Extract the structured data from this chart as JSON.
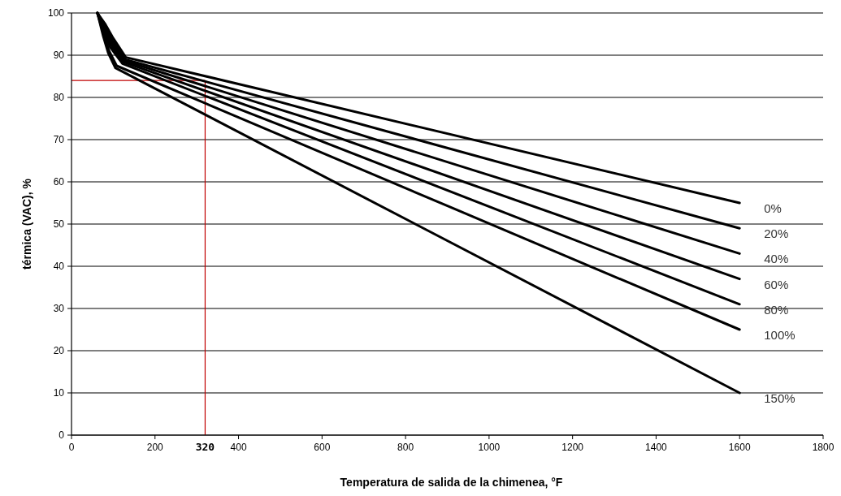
{
  "chart_data": {
    "type": "line",
    "xlabel": "Temperatura de salida de la chimenea, °F",
    "ylabel": "térmica (VAC), %",
    "xlim": [
      0,
      1800
    ],
    "xticks": [
      0,
      200,
      400,
      600,
      800,
      1000,
      1200,
      1400,
      1600,
      1800
    ],
    "ylim": [
      0,
      100
    ],
    "yticks": [
      0,
      10,
      20,
      30,
      40,
      50,
      60,
      70,
      80,
      90,
      100
    ],
    "grid": "y",
    "marker": "none",
    "line_style": "solid",
    "series": [
      {
        "name": "0%",
        "color": "#000000",
        "x": [
          62,
          80,
          100,
          130,
          1600
        ],
        "values": [
          100,
          97.5,
          94,
          89.5,
          55
        ]
      },
      {
        "name": "20%",
        "color": "#000000",
        "x": [
          62,
          80,
          98,
          128,
          1600
        ],
        "values": [
          100,
          97,
          93.5,
          89,
          49
        ]
      },
      {
        "name": "40%",
        "color": "#000000",
        "x": [
          62,
          80,
          96,
          126,
          1600
        ],
        "values": [
          100,
          96.5,
          93,
          88.7,
          43
        ]
      },
      {
        "name": "60%",
        "color": "#000000",
        "x": [
          62,
          79,
          94,
          124,
          1600
        ],
        "values": [
          100,
          96,
          92.5,
          88.4,
          37
        ]
      },
      {
        "name": "80%",
        "color": "#000000",
        "x": [
          62,
          78,
          92,
          122,
          1600
        ],
        "values": [
          100,
          95.5,
          92,
          88,
          31
        ]
      },
      {
        "name": "100%",
        "color": "#000000",
        "x": [
          62,
          77,
          90,
          108,
          1600
        ],
        "values": [
          100,
          95,
          91,
          87.5,
          25
        ]
      },
      {
        "name": "150%",
        "color": "#000000",
        "x": [
          62,
          76,
          88,
          105,
          1600
        ],
        "values": [
          100,
          94.5,
          90.5,
          87,
          10
        ]
      }
    ],
    "ref_lines": [
      {
        "axis": "x",
        "value": 320,
        "label": "320",
        "color": "#c00000"
      },
      {
        "axis": "y",
        "value": 84,
        "color": "#c00000"
      }
    ]
  }
}
